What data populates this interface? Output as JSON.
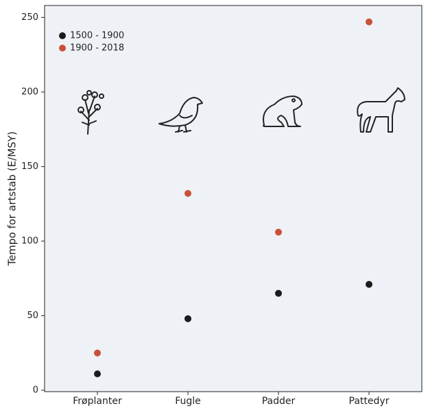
{
  "chart_data": {
    "type": "scatter",
    "y_label": "Tempo for artstab (E/MSY)",
    "categories": [
      "Frøplanter",
      "Fugle",
      "Padder",
      "Pattedyr"
    ],
    "series": [
      {
        "name": "1500 - 1900",
        "color": "#1c1c1c",
        "values": [
          11,
          48,
          65,
          71
        ]
      },
      {
        "name": "1900 - 2018",
        "color": "#c9513a",
        "values": [
          25,
          132,
          106,
          247
        ]
      }
    ],
    "ylim": [
      0,
      258
    ],
    "yticks": [
      0,
      50,
      100,
      150,
      200,
      250
    ],
    "legend": "upper-left"
  }
}
